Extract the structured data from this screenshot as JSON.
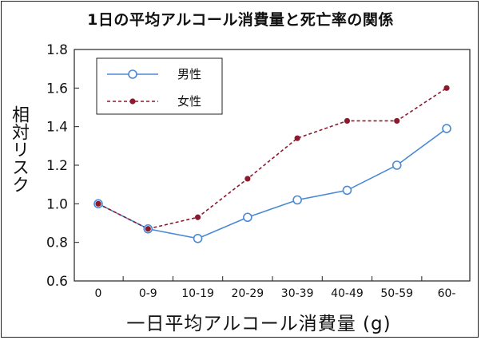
{
  "chart_data": {
    "type": "line",
    "title": "1日の平均アルコール消費量と死亡率の関係",
    "xlabel": "一日平均アルコール消費量 (g)",
    "ylabel": "相対リスク",
    "categories": [
      "0",
      "0-9",
      "10-19",
      "20-29",
      "30-39",
      "40-49",
      "50-59",
      "60-"
    ],
    "ylim": [
      0.6,
      1.8
    ],
    "yticks": [
      "0.6",
      "0.8",
      "1.0",
      "1.2",
      "1.4",
      "1.6",
      "1.8"
    ],
    "grid": false,
    "legend_position": "top-left",
    "series": [
      {
        "name": "男性",
        "values": [
          1.0,
          0.87,
          0.82,
          0.93,
          1.02,
          1.07,
          1.2,
          1.39
        ],
        "color": "#4a8ad4",
        "style": "solid",
        "marker": "open-circle"
      },
      {
        "name": "女性",
        "values": [
          1.0,
          0.87,
          0.93,
          1.13,
          1.34,
          1.43,
          1.43,
          1.6
        ],
        "color": "#8b1a2e",
        "style": "dashed",
        "marker": "filled-dot"
      }
    ]
  }
}
